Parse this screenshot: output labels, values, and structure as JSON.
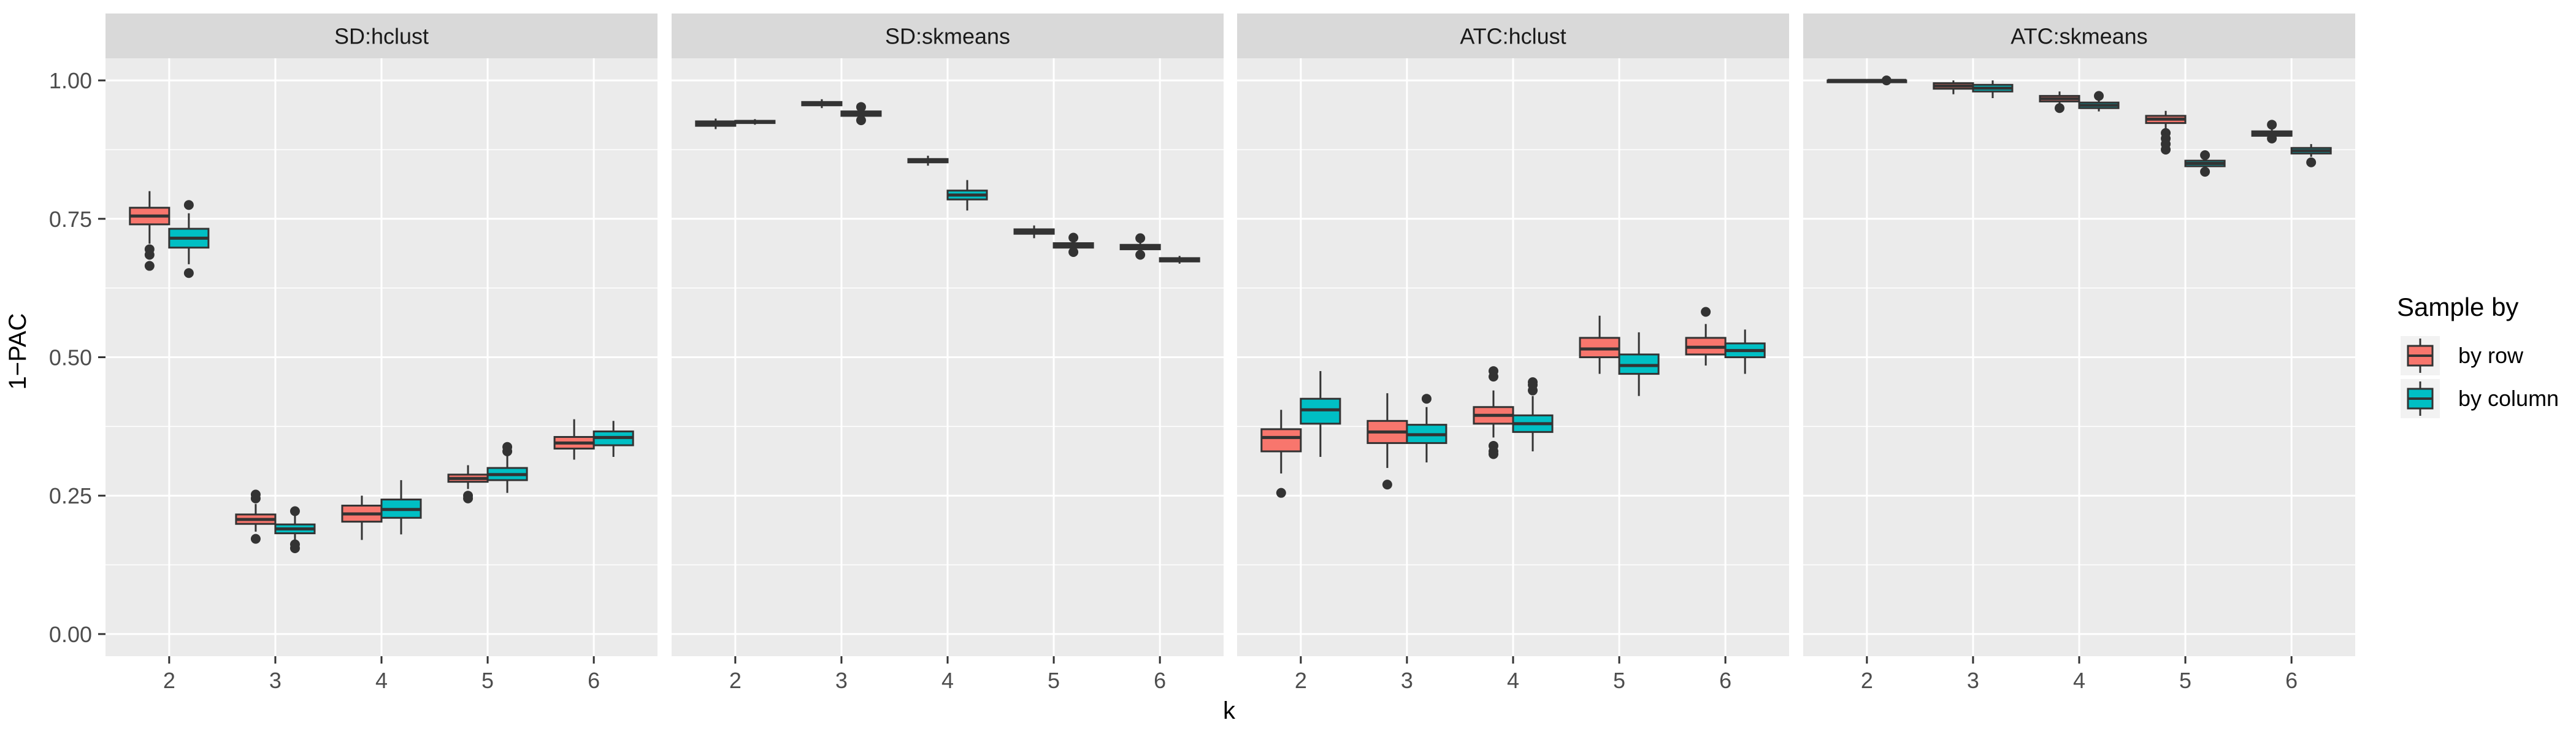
{
  "chart_data": {
    "type": "boxplot",
    "y_axis_label": "1−PAC",
    "x_axis_label": "k",
    "ylim": [
      -0.04,
      1.04
    ],
    "y_ticks": [
      0.0,
      0.25,
      0.5,
      0.75,
      1.0
    ],
    "y_tick_labels": [
      "0.00",
      "0.25",
      "0.50",
      "0.75",
      "1.00"
    ],
    "categories": [
      "2",
      "3",
      "4",
      "5",
      "6"
    ],
    "grid": true,
    "legend": {
      "title": "Sample by",
      "position": "right",
      "entries": [
        "by row",
        "by column"
      ]
    },
    "colors": {
      "by row": "#F8766D",
      "by column": "#00BFC4",
      "panel_bg": "#EBEBEB",
      "strip_bg": "#D9D9D9",
      "grid": "#FFFFFF",
      "box_line": "#333333"
    },
    "panels": [
      {
        "title": "SD:hclust",
        "series": [
          {
            "name": "by row",
            "boxes": [
              {
                "k": "2",
                "q1": 0.74,
                "median": 0.755,
                "q3": 0.77,
                "whisker_low": 0.705,
                "whisker_high": 0.8,
                "outliers": [
                  0.695,
                  0.685,
                  0.665
                ]
              },
              {
                "k": "3",
                "q1": 0.199,
                "median": 0.207,
                "q3": 0.216,
                "whisker_low": 0.185,
                "whisker_high": 0.235,
                "outliers": [
                  0.245,
                  0.252,
                  0.172
                ]
              },
              {
                "k": "4",
                "q1": 0.203,
                "median": 0.217,
                "q3": 0.232,
                "whisker_low": 0.17,
                "whisker_high": 0.25,
                "outliers": []
              },
              {
                "k": "5",
                "q1": 0.275,
                "median": 0.281,
                "q3": 0.288,
                "whisker_low": 0.262,
                "whisker_high": 0.305,
                "outliers": [
                  0.25,
                  0.245
                ]
              },
              {
                "k": "6",
                "q1": 0.335,
                "median": 0.345,
                "q3": 0.356,
                "whisker_low": 0.315,
                "whisker_high": 0.388,
                "outliers": []
              }
            ]
          },
          {
            "name": "by column",
            "boxes": [
              {
                "k": "2",
                "q1": 0.698,
                "median": 0.715,
                "q3": 0.732,
                "whisker_low": 0.668,
                "whisker_high": 0.76,
                "outliers": [
                  0.775,
                  0.652
                ]
              },
              {
                "k": "3",
                "q1": 0.182,
                "median": 0.19,
                "q3": 0.198,
                "whisker_low": 0.168,
                "whisker_high": 0.215,
                "outliers": [
                  0.222,
                  0.162,
                  0.155
                ]
              },
              {
                "k": "4",
                "q1": 0.21,
                "median": 0.225,
                "q3": 0.243,
                "whisker_low": 0.18,
                "whisker_high": 0.278,
                "outliers": []
              },
              {
                "k": "5",
                "q1": 0.278,
                "median": 0.288,
                "q3": 0.3,
                "whisker_low": 0.255,
                "whisker_high": 0.325,
                "outliers": [
                  0.33,
                  0.338
                ]
              },
              {
                "k": "6",
                "q1": 0.341,
                "median": 0.355,
                "q3": 0.366,
                "whisker_low": 0.32,
                "whisker_high": 0.385,
                "outliers": []
              }
            ]
          }
        ]
      },
      {
        "title": "SD:skmeans",
        "series": [
          {
            "name": "by row",
            "boxes": [
              {
                "k": "2",
                "q1": 0.918,
                "median": 0.922,
                "q3": 0.926,
                "whisker_low": 0.912,
                "whisker_high": 0.931,
                "outliers": []
              },
              {
                "k": "3",
                "q1": 0.955,
                "median": 0.958,
                "q3": 0.961,
                "whisker_low": 0.95,
                "whisker_high": 0.966,
                "outliers": []
              },
              {
                "k": "4",
                "q1": 0.852,
                "median": 0.855,
                "q3": 0.858,
                "whisker_low": 0.846,
                "whisker_high": 0.864,
                "outliers": []
              },
              {
                "k": "5",
                "q1": 0.723,
                "median": 0.727,
                "q3": 0.731,
                "whisker_low": 0.715,
                "whisker_high": 0.738,
                "outliers": []
              },
              {
                "k": "6",
                "q1": 0.695,
                "median": 0.699,
                "q3": 0.703,
                "whisker_low": 0.688,
                "whisker_high": 0.708,
                "outliers": [
                  0.715,
                  0.685
                ]
              }
            ]
          },
          {
            "name": "by column",
            "boxes": [
              {
                "k": "2",
                "q1": 0.923,
                "median": 0.925,
                "q3": 0.927,
                "whisker_low": 0.92,
                "whisker_high": 0.93,
                "outliers": []
              },
              {
                "k": "3",
                "q1": 0.936,
                "median": 0.94,
                "q3": 0.944,
                "whisker_low": 0.93,
                "whisker_high": 0.95,
                "outliers": [
                  0.952,
                  0.928
                ]
              },
              {
                "k": "4",
                "q1": 0.785,
                "median": 0.793,
                "q3": 0.801,
                "whisker_low": 0.765,
                "whisker_high": 0.82,
                "outliers": []
              },
              {
                "k": "5",
                "q1": 0.698,
                "median": 0.702,
                "q3": 0.706,
                "whisker_low": 0.693,
                "whisker_high": 0.712,
                "outliers": [
                  0.716,
                  0.69
                ]
              },
              {
                "k": "6",
                "q1": 0.673,
                "median": 0.676,
                "q3": 0.679,
                "whisker_low": 0.669,
                "whisker_high": 0.683,
                "outliers": []
              }
            ]
          }
        ]
      },
      {
        "title": "ATC:hclust",
        "series": [
          {
            "name": "by row",
            "boxes": [
              {
                "k": "2",
                "q1": 0.33,
                "median": 0.355,
                "q3": 0.37,
                "whisker_low": 0.29,
                "whisker_high": 0.405,
                "outliers": [
                  0.255
                ]
              },
              {
                "k": "3",
                "q1": 0.345,
                "median": 0.365,
                "q3": 0.385,
                "whisker_low": 0.3,
                "whisker_high": 0.435,
                "outliers": [
                  0.27
                ]
              },
              {
                "k": "4",
                "q1": 0.38,
                "median": 0.395,
                "q3": 0.41,
                "whisker_low": 0.355,
                "whisker_high": 0.44,
                "outliers": [
                  0.465,
                  0.475,
                  0.34,
                  0.33,
                  0.325
                ]
              },
              {
                "k": "5",
                "q1": 0.5,
                "median": 0.515,
                "q3": 0.535,
                "whisker_low": 0.47,
                "whisker_high": 0.575,
                "outliers": []
              },
              {
                "k": "6",
                "q1": 0.505,
                "median": 0.518,
                "q3": 0.535,
                "whisker_low": 0.485,
                "whisker_high": 0.56,
                "outliers": [
                  0.582
                ]
              }
            ]
          },
          {
            "name": "by column",
            "boxes": [
              {
                "k": "2",
                "q1": 0.38,
                "median": 0.405,
                "q3": 0.425,
                "whisker_low": 0.32,
                "whisker_high": 0.475,
                "outliers": []
              },
              {
                "k": "3",
                "q1": 0.345,
                "median": 0.36,
                "q3": 0.378,
                "whisker_low": 0.31,
                "whisker_high": 0.41,
                "outliers": [
                  0.425
                ]
              },
              {
                "k": "4",
                "q1": 0.365,
                "median": 0.38,
                "q3": 0.395,
                "whisker_low": 0.33,
                "whisker_high": 0.43,
                "outliers": [
                  0.44,
                  0.45,
                  0.455
                ]
              },
              {
                "k": "5",
                "q1": 0.47,
                "median": 0.485,
                "q3": 0.505,
                "whisker_low": 0.43,
                "whisker_high": 0.545,
                "outliers": []
              },
              {
                "k": "6",
                "q1": 0.5,
                "median": 0.512,
                "q3": 0.525,
                "whisker_low": 0.47,
                "whisker_high": 0.55,
                "outliers": []
              }
            ]
          }
        ]
      },
      {
        "title": "ATC:skmeans",
        "series": [
          {
            "name": "by row",
            "boxes": [
              {
                "k": "2",
                "q1": 0.999,
                "median": 1.0,
                "q3": 1.0,
                "whisker_low": 0.998,
                "whisker_high": 1.0,
                "outliers": []
              },
              {
                "k": "3",
                "q1": 0.985,
                "median": 0.99,
                "q3": 0.995,
                "whisker_low": 0.975,
                "whisker_high": 1.0,
                "outliers": []
              },
              {
                "k": "4",
                "q1": 0.962,
                "median": 0.967,
                "q3": 0.972,
                "whisker_low": 0.955,
                "whisker_high": 0.98,
                "outliers": [
                  0.95
                ]
              },
              {
                "k": "5",
                "q1": 0.923,
                "median": 0.93,
                "q3": 0.936,
                "whisker_low": 0.91,
                "whisker_high": 0.945,
                "outliers": [
                  0.905,
                  0.895,
                  0.885,
                  0.875
                ]
              },
              {
                "k": "6",
                "q1": 0.9,
                "median": 0.904,
                "q3": 0.908,
                "whisker_low": 0.893,
                "whisker_high": 0.913,
                "outliers": [
                  0.92,
                  0.895
                ]
              }
            ]
          },
          {
            "name": "by column",
            "boxes": [
              {
                "k": "2",
                "q1": 0.999,
                "median": 1.0,
                "q3": 1.0,
                "whisker_low": 0.997,
                "whisker_high": 1.0,
                "outliers": [
                  1.0
                ]
              },
              {
                "k": "3",
                "q1": 0.98,
                "median": 0.986,
                "q3": 0.992,
                "whisker_low": 0.968,
                "whisker_high": 1.0,
                "outliers": []
              },
              {
                "k": "4",
                "q1": 0.95,
                "median": 0.955,
                "q3": 0.96,
                "whisker_low": 0.944,
                "whisker_high": 0.966,
                "outliers": [
                  0.972
                ]
              },
              {
                "k": "5",
                "q1": 0.845,
                "median": 0.85,
                "q3": 0.855,
                "whisker_low": 0.838,
                "whisker_high": 0.86,
                "outliers": [
                  0.865,
                  0.835
                ]
              },
              {
                "k": "6",
                "q1": 0.868,
                "median": 0.873,
                "q3": 0.878,
                "whisker_low": 0.862,
                "whisker_high": 0.885,
                "outliers": [
                  0.852
                ]
              }
            ]
          }
        ]
      }
    ]
  }
}
